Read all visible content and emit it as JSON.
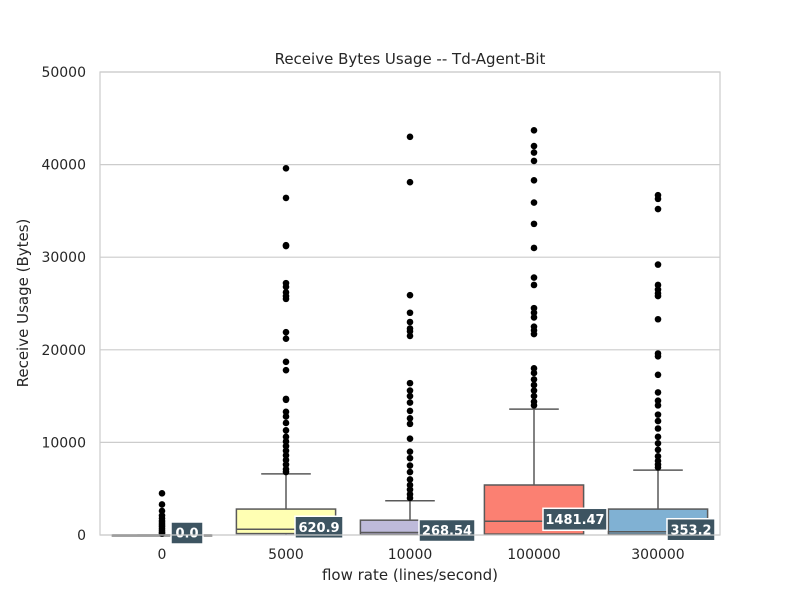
{
  "chart_data": {
    "type": "box",
    "title": "Receive Bytes Usage -- Td-Agent-Bit",
    "xlabel": "flow rate (lines/second)",
    "ylabel": "Receive Usage (Bytes)",
    "ylim": [
      0,
      50000
    ],
    "yticks": [
      0,
      10000,
      20000,
      30000,
      40000,
      50000
    ],
    "ytick_labels": [
      "0",
      "10000",
      "20000",
      "30000",
      "40000",
      "50000"
    ],
    "grid": true,
    "categories": [
      "0",
      "5000",
      "10000",
      "100000",
      "300000"
    ],
    "boxes": [
      {
        "category": "0",
        "color": "#8dd3c7",
        "q1": 0,
        "median": 0,
        "q3": 0,
        "whisker_low": 0,
        "whisker_high": 0,
        "median_label": "0.0",
        "outliers": [
          4500,
          3300,
          2600,
          2100,
          1800,
          1500,
          1300,
          1100,
          900,
          700,
          500,
          300,
          150
        ]
      },
      {
        "category": "5000",
        "color": "#ffffb3",
        "q1": 150,
        "median": 620.9,
        "q3": 2800,
        "whisker_low": 0,
        "whisker_high": 6600,
        "median_label": "620.9",
        "outliers": [
          39600,
          36400,
          31300,
          31200,
          27200,
          26800,
          26200,
          25800,
          25500,
          21900,
          21200,
          18700,
          17800,
          14700,
          14600,
          13300,
          12800,
          12100,
          11300,
          10600,
          10100,
          9600,
          9100,
          8600,
          8100,
          7600,
          7100,
          6800
        ]
      },
      {
        "category": "10000",
        "color": "#bebada",
        "q1": 50,
        "median": 268.54,
        "q3": 1600,
        "whisker_low": 0,
        "whisker_high": 3700,
        "median_label": "268.54",
        "outliers": [
          43000,
          38100,
          25900,
          24000,
          23000,
          22300,
          22000,
          21500,
          16400,
          15600,
          15000,
          14300,
          13400,
          12600,
          12000,
          10400,
          9000,
          8300,
          7500,
          6800,
          6000,
          5400,
          4900,
          4400,
          4000
        ]
      },
      {
        "category": "100000",
        "color": "#fb8072",
        "q1": 100,
        "median": 1481.47,
        "q3": 5400,
        "whisker_low": 0,
        "whisker_high": 13600,
        "median_label": "1481.47",
        "outliers": [
          43700,
          42000,
          41300,
          40400,
          38300,
          35900,
          33600,
          31000,
          27800,
          27000,
          24500,
          24000,
          23500,
          22500,
          22100,
          21700,
          18000,
          17500,
          16800,
          16200,
          15600,
          15000,
          14400,
          14000
        ]
      },
      {
        "category": "300000",
        "color": "#80b1d3",
        "q1": 80,
        "median": 353.2,
        "q3": 2800,
        "whisker_low": 0,
        "whisker_high": 7000,
        "median_label": "353.2",
        "outliers": [
          36700,
          36300,
          35200,
          29200,
          27000,
          26500,
          26100,
          25800,
          23300,
          19600,
          19300,
          17300,
          15400,
          14500,
          14000,
          13000,
          12300,
          11500,
          10600,
          9900,
          9200,
          8500,
          8000,
          7600,
          7300
        ]
      }
    ],
    "median_label_color": "#3d5461"
  }
}
